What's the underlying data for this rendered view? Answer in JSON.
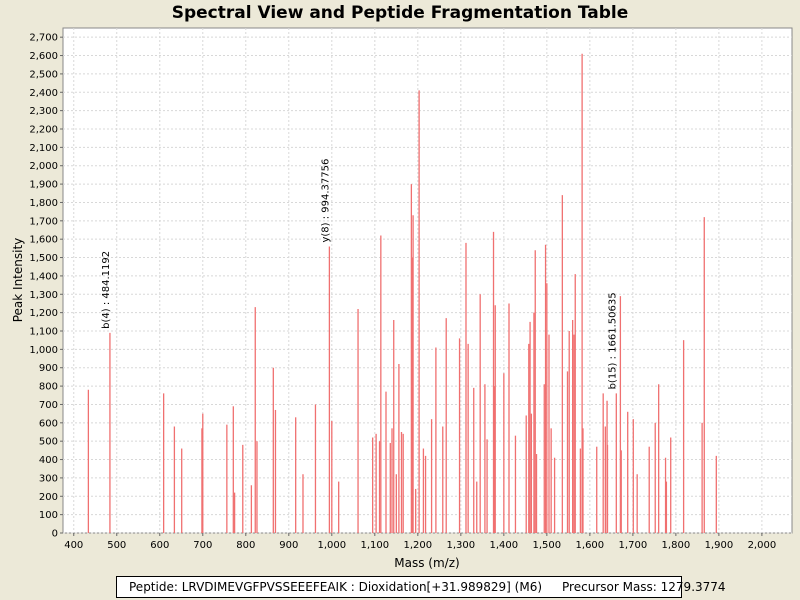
{
  "chart_data": {
    "type": "bar",
    "title": "Spectral View and Peptide Fragmentation Table",
    "xlabel": "Mass (m/z)",
    "ylabel": "Peak Intensity",
    "xlim": [
      375,
      2070
    ],
    "ylim": [
      0,
      2750
    ],
    "x_ticks": [
      400,
      500,
      600,
      700,
      800,
      900,
      1000,
      1100,
      1200,
      1300,
      1400,
      1500,
      1600,
      1700,
      1800,
      1900,
      2000
    ],
    "x_tick_labels": [
      "400",
      "500",
      "600",
      "700",
      "800",
      "900",
      "1,000",
      "1,100",
      "1,200",
      "1,300",
      "1,400",
      "1,500",
      "1,600",
      "1,700",
      "1,800",
      "1,900",
      "2,000"
    ],
    "y_ticks": [
      0,
      100,
      200,
      300,
      400,
      500,
      600,
      700,
      800,
      900,
      1000,
      1100,
      1200,
      1300,
      1400,
      1500,
      1600,
      1700,
      1800,
      1900,
      2000,
      2100,
      2200,
      2300,
      2400,
      2500,
      2600,
      2700
    ],
    "y_tick_labels": [
      "0",
      "100",
      "200",
      "300",
      "400",
      "500",
      "600",
      "700",
      "800",
      "900",
      "1,000",
      "1,100",
      "1,200",
      "1,300",
      "1,400",
      "1,500",
      "1,600",
      "1,700",
      "1,800",
      "1,900",
      "2,000",
      "2,100",
      "2,200",
      "2,300",
      "2,400",
      "2,500",
      "2,600",
      "2,700"
    ],
    "grid": true,
    "bar_color": "#f07070",
    "peaks": [
      [
        434,
        780
      ],
      [
        484.1192,
        1090
      ],
      [
        609,
        760
      ],
      [
        634,
        580
      ],
      [
        651,
        460
      ],
      [
        698,
        570
      ],
      [
        700,
        650
      ],
      [
        756,
        590
      ],
      [
        771,
        690
      ],
      [
        774,
        220
      ],
      [
        793,
        480
      ],
      [
        813,
        260
      ],
      [
        822,
        1230
      ],
      [
        826,
        500
      ],
      [
        864,
        900
      ],
      [
        869,
        670
      ],
      [
        916,
        630
      ],
      [
        933,
        320
      ],
      [
        962,
        700
      ],
      [
        994.37756,
        1560
      ],
      [
        1000,
        610
      ],
      [
        1016,
        280
      ],
      [
        1061,
        1220
      ],
      [
        1095,
        520
      ],
      [
        1103,
        540
      ],
      [
        1111,
        500
      ],
      [
        1114,
        1620
      ],
      [
        1126,
        770
      ],
      [
        1136,
        490
      ],
      [
        1140,
        570
      ],
      [
        1144,
        1160
      ],
      [
        1150,
        320
      ],
      [
        1156,
        920
      ],
      [
        1162,
        550
      ],
      [
        1166,
        540
      ],
      [
        1185,
        1900
      ],
      [
        1187,
        1500
      ],
      [
        1189,
        1730
      ],
      [
        1195,
        240
      ],
      [
        1203,
        2410
      ],
      [
        1213,
        460
      ],
      [
        1218,
        420
      ],
      [
        1232,
        620
      ],
      [
        1242,
        1010
      ],
      [
        1258,
        580
      ],
      [
        1266,
        1170
      ],
      [
        1297,
        1060
      ],
      [
        1312,
        1580
      ],
      [
        1317,
        1030
      ],
      [
        1330,
        790
      ],
      [
        1337,
        280
      ],
      [
        1345,
        1300
      ],
      [
        1356,
        810
      ],
      [
        1361,
        510
      ],
      [
        1376,
        1640
      ],
      [
        1378,
        800
      ],
      [
        1380,
        1240
      ],
      [
        1400,
        870
      ],
      [
        1412,
        1250
      ],
      [
        1427,
        530
      ],
      [
        1452,
        640
      ],
      [
        1458,
        1030
      ],
      [
        1461,
        1150
      ],
      [
        1464,
        650
      ],
      [
        1470,
        1200
      ],
      [
        1473,
        1540
      ],
      [
        1476,
        430
      ],
      [
        1494,
        810
      ],
      [
        1497,
        1570
      ],
      [
        1500,
        1360
      ],
      [
        1505,
        1080
      ],
      [
        1510,
        570
      ],
      [
        1518,
        410
      ],
      [
        1536,
        1840
      ],
      [
        1548,
        880
      ],
      [
        1552,
        1100
      ],
      [
        1560,
        1160
      ],
      [
        1563,
        1080
      ],
      [
        1566,
        1410
      ],
      [
        1578,
        460
      ],
      [
        1582,
        2610
      ],
      [
        1584,
        570
      ],
      [
        1616,
        470
      ],
      [
        1631,
        760
      ],
      [
        1636,
        580
      ],
      [
        1640,
        720
      ],
      [
        1641,
        480
      ],
      [
        1661.50635,
        760
      ],
      [
        1671,
        1290
      ],
      [
        1673,
        450
      ],
      [
        1688,
        660
      ],
      [
        1701,
        620
      ],
      [
        1710,
        320
      ],
      [
        1738,
        470
      ],
      [
        1752,
        600
      ],
      [
        1760,
        810
      ],
      [
        1776,
        410
      ],
      [
        1778,
        280
      ],
      [
        1788,
        520
      ],
      [
        1818,
        1050
      ],
      [
        1861,
        600
      ],
      [
        1866,
        1720
      ],
      [
        1894,
        420
      ]
    ],
    "annotations": [
      {
        "x": 484.1192,
        "y": 1090,
        "label": "b(4) : 484.1192"
      },
      {
        "x": 994.37756,
        "y": 1560,
        "label": "y(8) : 994.37756"
      },
      {
        "x": 1661.50635,
        "y": 760,
        "label": "b(15) : 1661.50635"
      }
    ]
  },
  "footer": {
    "peptide_text": "Peptide: LRVDIMEVGFPVSSEEEFEAIK : Dioxidation[+31.989829] (M6)",
    "precursor_text": "Precursor Mass: 1279.3774"
  }
}
